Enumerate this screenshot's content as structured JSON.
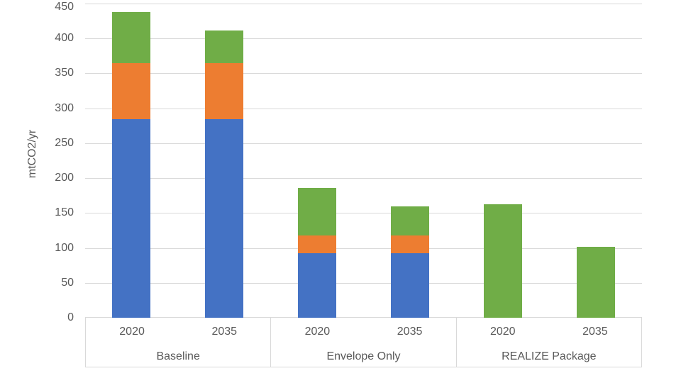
{
  "chart_data": {
    "type": "bar",
    "stacked": true,
    "title": "",
    "xlabel": "",
    "ylabel": "mtCO2/yr",
    "ylim": [
      0,
      450
    ],
    "ytick_interval": 50,
    "grid": true,
    "legend_position": "none",
    "series_order": [
      "blue",
      "orange",
      "green"
    ],
    "series_colors": {
      "blue": "#4472C4",
      "orange": "#ED7D31",
      "green": "#70AD47"
    },
    "groups": [
      {
        "label": "Baseline",
        "bars": [
          {
            "x": "2020",
            "segments": {
              "blue": 284,
              "orange": 81,
              "green": 73
            },
            "total": 438
          },
          {
            "x": "2035",
            "segments": {
              "blue": 284,
              "orange": 81,
              "green": 46
            },
            "total": 411
          }
        ]
      },
      {
        "label": "Envelope Only",
        "bars": [
          {
            "x": "2020",
            "segments": {
              "blue": 92,
              "orange": 26,
              "green": 68
            },
            "total": 186
          },
          {
            "x": "2035",
            "segments": {
              "blue": 92,
              "orange": 26,
              "green": 42
            },
            "total": 160
          }
        ]
      },
      {
        "label": "REALIZE Package",
        "bars": [
          {
            "x": "2020",
            "segments": {
              "green": 163
            },
            "total": 163
          },
          {
            "x": "2035",
            "segments": {
              "green": 102
            },
            "total": 102
          }
        ]
      }
    ],
    "colors": {
      "gridline": "#D9D9D9",
      "axis_border": "#D9D9D9",
      "text": "#595959",
      "background": "#FFFFFF"
    }
  }
}
